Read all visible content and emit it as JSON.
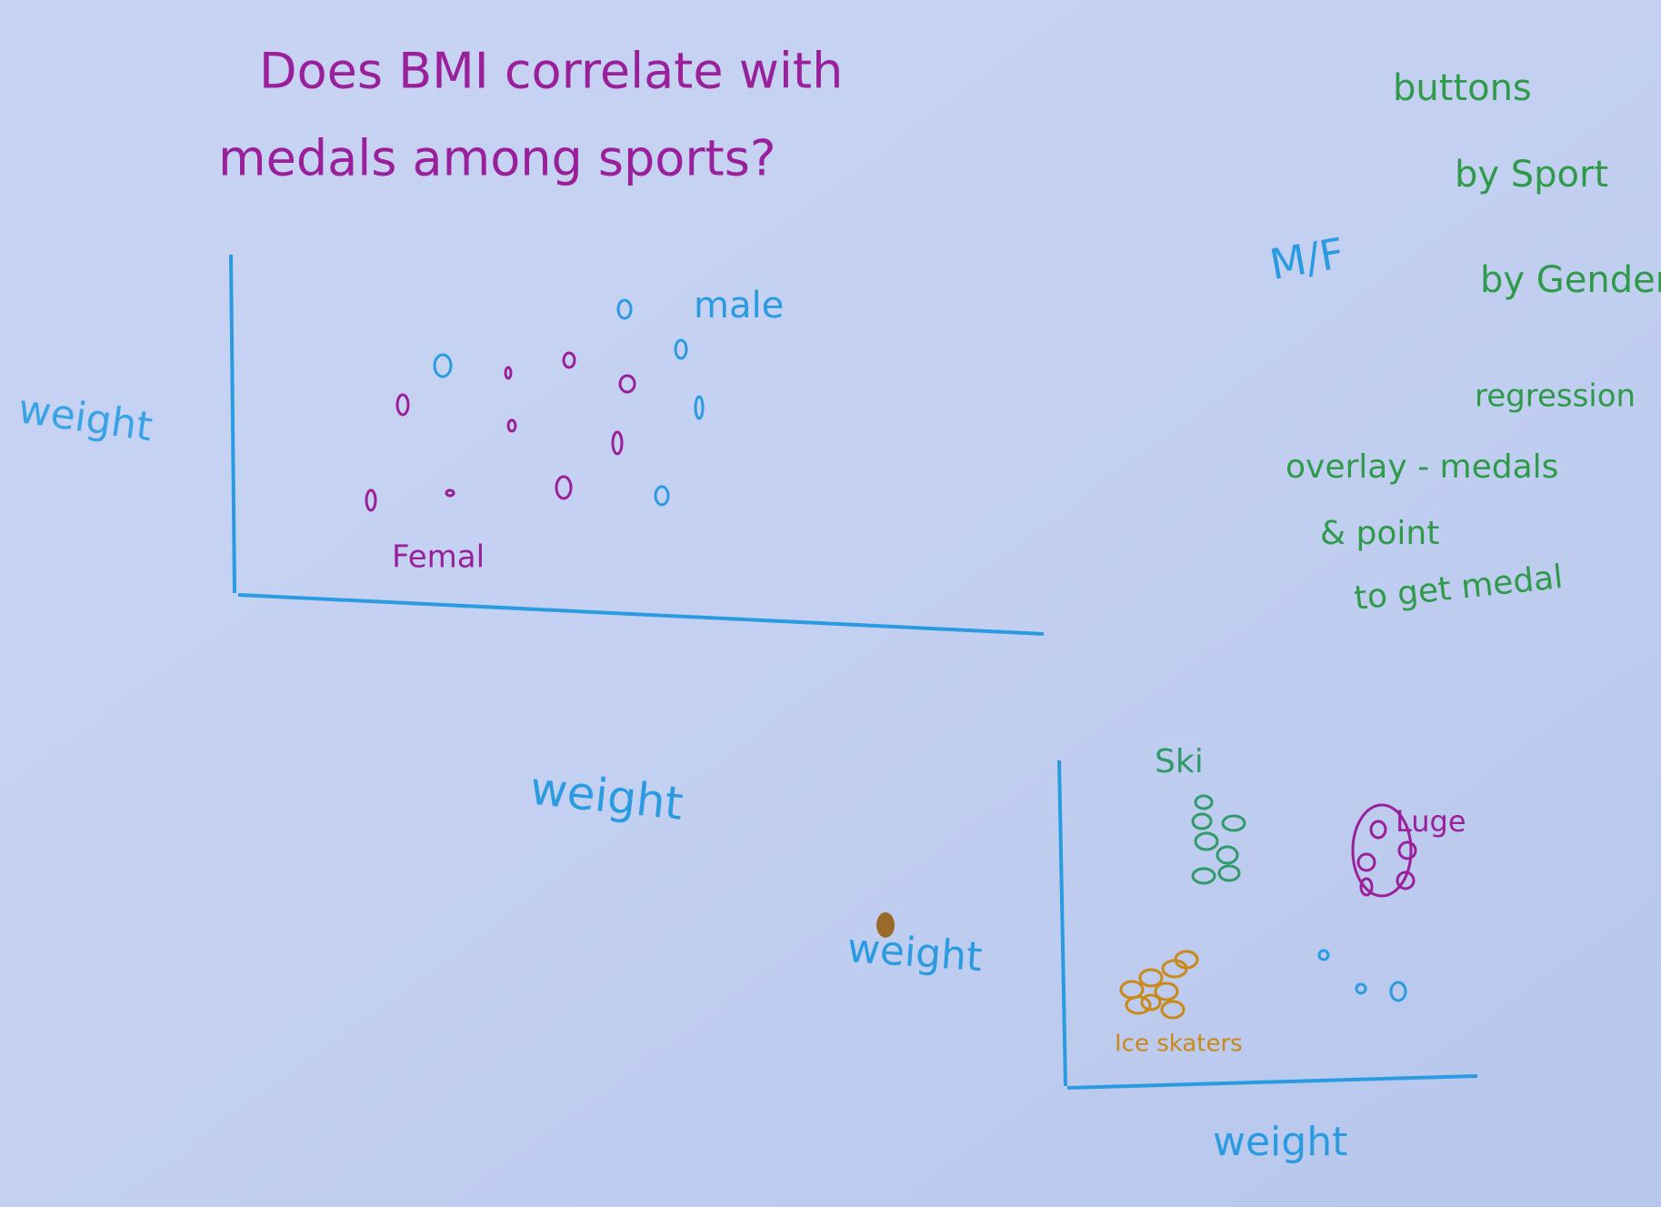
{
  "title": {
    "line1": "Does BMI correlate with",
    "line2": "medals among sports?"
  },
  "top_sketch": {
    "y_label": "weight",
    "male_label": "male",
    "female_label": "Femal"
  },
  "notes": {
    "heading": "buttons",
    "items": [
      "by Sport",
      "by Gender",
      "regression",
      "overlay - medals",
      "& point",
      "to get medal"
    ],
    "toggle": "M/F"
  },
  "bottom_sketch": {
    "floating_labels": [
      "weight",
      "weight"
    ],
    "y_label": "weight",
    "x_label": "weight",
    "clusters": [
      "Ski",
      "Luge",
      "Ice skaters"
    ]
  }
}
